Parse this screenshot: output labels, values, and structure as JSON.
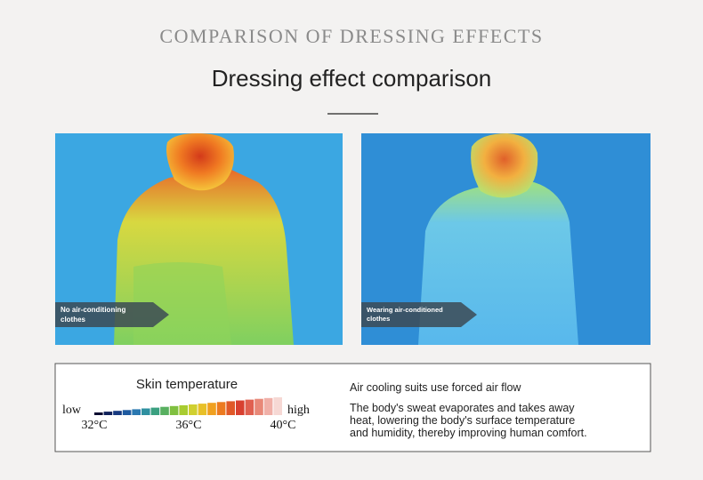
{
  "header": {
    "title": "COMPARISON OF DRESSING EFFECTS",
    "subtitle": "Dressing effect comparison"
  },
  "panels": [
    {
      "label_lines": [
        "No air-conditioning",
        "clothes"
      ]
    },
    {
      "label_lines": [
        "Wearing air-conditioned",
        "clothes"
      ]
    }
  ],
  "legend": {
    "title": "Skin temperature",
    "low": "low",
    "high": "high",
    "ticks": [
      "32°C",
      "36°C",
      "40°C"
    ]
  },
  "description": {
    "heading": "Air cooling suits use forced air flow",
    "body_lines": [
      "The body's sweat evaporates and takes away",
      "heat, lowering the body's surface temperature",
      "and humidity, thereby improving human comfort."
    ]
  }
}
